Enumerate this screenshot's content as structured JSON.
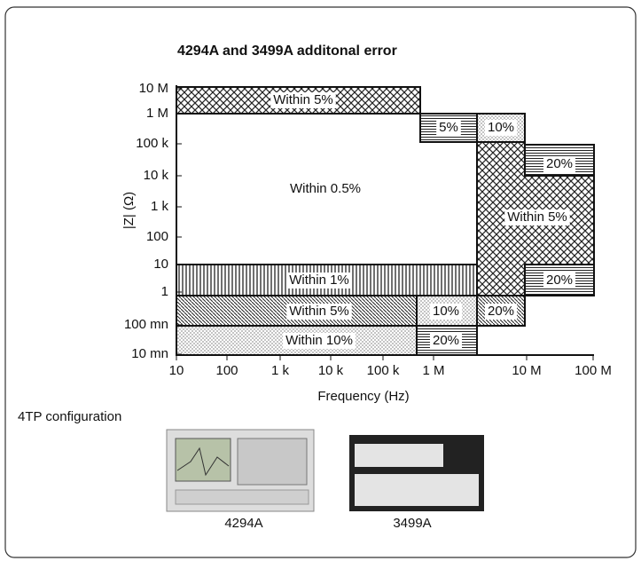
{
  "title": "4294A and 3499A additonal error",
  "y_axis_label": "|Z| (Ω)",
  "x_axis_label": "Frequency (Hz)",
  "x_ticks": [
    "10",
    "100",
    "1 k",
    "10 k",
    "100 k",
    "1 M",
    "10 M",
    "100 M"
  ],
  "y_ticks": [
    "10 M",
    "1 M",
    "100 k",
    "10 k",
    "1 k",
    "100",
    "10",
    "1",
    "100 mn",
    "10 mn"
  ],
  "regions": [
    {
      "label": "Within 5%"
    },
    {
      "label": "5%"
    },
    {
      "label": "10%"
    },
    {
      "label": "Within 5%"
    },
    {
      "label": "20%"
    },
    {
      "label": "20%"
    },
    {
      "label": "Within 0.5%"
    },
    {
      "label": "Within 1%"
    },
    {
      "label": "Within 5%"
    },
    {
      "label": "10%"
    },
    {
      "label": "20%"
    },
    {
      "label": "Within 10%"
    },
    {
      "label": "20%"
    }
  ],
  "configuration_label": "4TP configuration",
  "instruments": [
    {
      "label": "4294A"
    },
    {
      "label": "3499A"
    }
  ]
}
